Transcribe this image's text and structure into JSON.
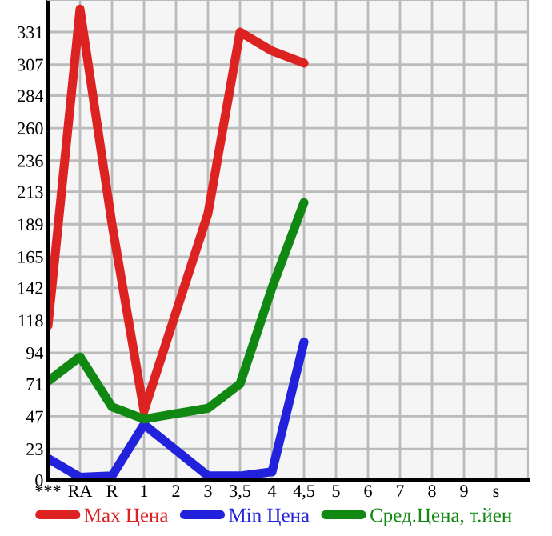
{
  "chart_data": {
    "type": "line",
    "categories": [
      "***",
      "RA",
      "R",
      "1",
      "2",
      "3",
      "3,5",
      "4",
      "4,5",
      "5",
      "6",
      "7",
      "8",
      "9",
      "s"
    ],
    "series": [
      {
        "name": "Max Цена",
        "color": "#dd2222",
        "values": [
          114,
          348,
          189,
          51,
          124,
          197,
          331,
          317,
          308,
          null,
          null,
          null,
          null,
          null,
          null
        ]
      },
      {
        "name": "Min Цена",
        "color": "#2222dd",
        "values": [
          16,
          2,
          3,
          41,
          22,
          3,
          3,
          6,
          102,
          null,
          null,
          null,
          null,
          null,
          null
        ]
      },
      {
        "name": "Сред.Цена, т.йен",
        "color": "#118811",
        "values": [
          73,
          91,
          54,
          45,
          49,
          53,
          71,
          142,
          205,
          null,
          null,
          null,
          null,
          null,
          null
        ]
      }
    ],
    "ylim": [
      0,
      354.64
    ],
    "yticks": [
      0,
      23,
      47,
      71,
      94,
      118,
      142,
      165,
      189,
      213,
      236,
      260,
      284,
      307,
      331
    ],
    "grid": true,
    "legend": "bottom",
    "marker": "none",
    "line_style": "solid"
  }
}
